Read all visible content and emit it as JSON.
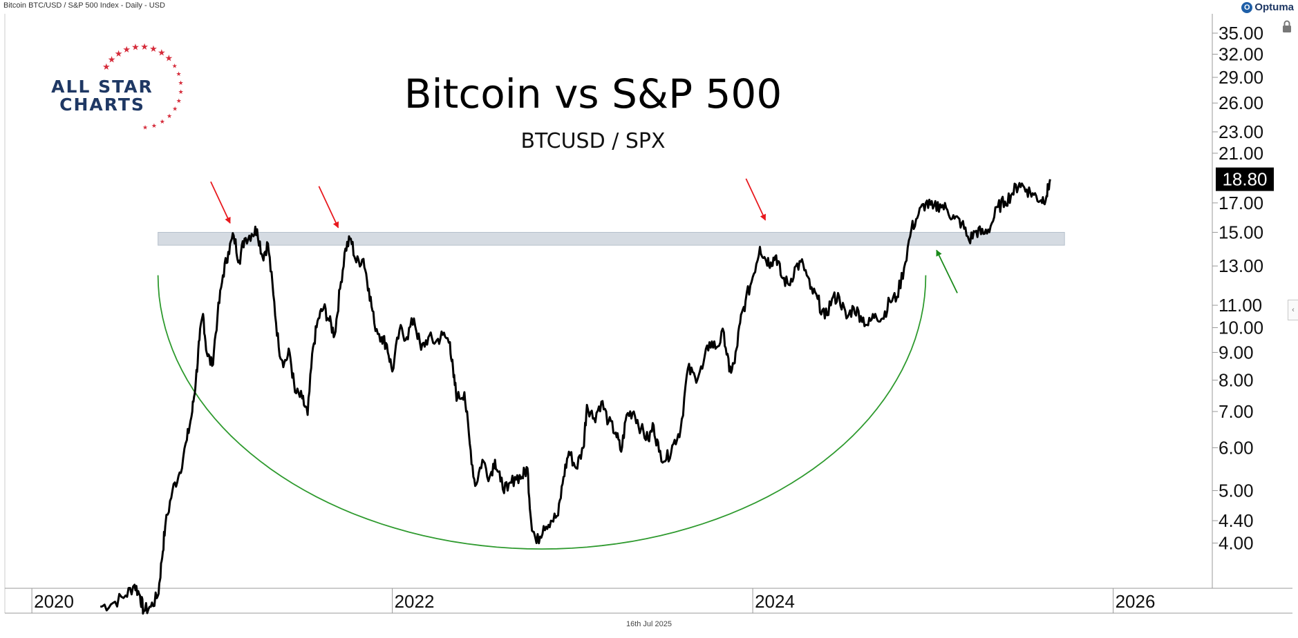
{
  "header": {
    "description": "Bitcoin BTC/USD / S&P 500 Index - Daily - USD",
    "brand": "Optuma"
  },
  "logo": {
    "line1": "ALL STAR",
    "line2": "CHARTS"
  },
  "footer": {
    "date": "16th Jul 2025"
  },
  "colors": {
    "price_line": "#000000",
    "resistance_band": "#d5dbe2",
    "red_arrow": "#e8191e",
    "green_arrow": "#1a8a1a",
    "cup_curve": "#2e9a2e",
    "logo_navy": "#1f3864",
    "logo_star": "#d52b3a"
  },
  "chart_data": {
    "type": "line",
    "title": "Bitcoin vs S&P 500",
    "subtitle": "BTCUSD / SPX",
    "y_scale": "log",
    "y_ticks": [
      "35.00",
      "32.00",
      "29.00",
      "26.00",
      "23.00",
      "21.00",
      "17.00",
      "15.00",
      "13.00",
      "11.00",
      "10.00",
      "9.00",
      "8.00",
      "7.00",
      "6.00",
      "5.00",
      "4.40",
      "4.00"
    ],
    "x_ticks": [
      "2020",
      "2022",
      "2024",
      "2026"
    ],
    "last_value": "18.80",
    "xlim": [
      2019.85,
      2026.55
    ],
    "ylim": [
      3.3,
      38
    ],
    "resistance_zone": {
      "y_low": 14.2,
      "y_high": 15.0,
      "x_start": 2020.7,
      "x_end": 2025.73
    },
    "cup": {
      "x_start": 2020.7,
      "x_end": 2024.96,
      "y_start": 12.5,
      "y_bottom": 3.9
    },
    "annotations": [
      {
        "type": "red_arrow",
        "x": 2021.1,
        "y": 15.6
      },
      {
        "type": "red_arrow",
        "x": 2021.7,
        "y": 15.3
      },
      {
        "type": "red_arrow",
        "x": 2024.07,
        "y": 15.8
      },
      {
        "type": "green_arrow",
        "x": 2025.02,
        "y": 13.9
      }
    ],
    "series": [
      {
        "points": [
          [
            2020.38,
            3.05
          ],
          [
            2020.45,
            3.1
          ],
          [
            2020.52,
            3.2
          ],
          [
            2020.57,
            3.35
          ],
          [
            2020.6,
            3.2
          ],
          [
            2020.62,
            3.0
          ],
          [
            2020.66,
            3.05
          ],
          [
            2020.7,
            3.2
          ],
          [
            2020.72,
            3.7
          ],
          [
            2020.74,
            4.3
          ],
          [
            2020.78,
            5.0
          ],
          [
            2020.82,
            5.4
          ],
          [
            2020.86,
            6.2
          ],
          [
            2020.89,
            7.0
          ],
          [
            2020.91,
            8.0
          ],
          [
            2020.93,
            9.5
          ],
          [
            2020.95,
            10.6
          ],
          [
            2020.97,
            9.0
          ],
          [
            2021.0,
            8.5
          ],
          [
            2021.03,
            10.5
          ],
          [
            2021.06,
            12.5
          ],
          [
            2021.09,
            13.8
          ],
          [
            2021.12,
            14.8
          ],
          [
            2021.15,
            13.3
          ],
          [
            2021.18,
            14.6
          ],
          [
            2021.22,
            14.9
          ],
          [
            2021.25,
            15.2
          ],
          [
            2021.28,
            13.5
          ],
          [
            2021.31,
            14.3
          ],
          [
            2021.34,
            11.5
          ],
          [
            2021.37,
            9.2
          ],
          [
            2021.4,
            8.6
          ],
          [
            2021.43,
            9.0
          ],
          [
            2021.46,
            7.6
          ],
          [
            2021.5,
            7.4
          ],
          [
            2021.53,
            6.9
          ],
          [
            2021.56,
            9.2
          ],
          [
            2021.59,
            10.4
          ],
          [
            2021.62,
            10.9
          ],
          [
            2021.65,
            10.3
          ],
          [
            2021.68,
            9.7
          ],
          [
            2021.71,
            11.8
          ],
          [
            2021.74,
            14.0
          ],
          [
            2021.77,
            14.6
          ],
          [
            2021.8,
            13.2
          ],
          [
            2021.84,
            13.4
          ],
          [
            2021.87,
            11.8
          ],
          [
            2021.9,
            10.2
          ],
          [
            2021.94,
            9.6
          ],
          [
            2021.97,
            9.3
          ],
          [
            2022.0,
            8.3
          ],
          [
            2022.04,
            9.9
          ],
          [
            2022.08,
            9.6
          ],
          [
            2022.12,
            10.4
          ],
          [
            2022.16,
            9.1
          ],
          [
            2022.2,
            9.6
          ],
          [
            2022.24,
            9.4
          ],
          [
            2022.28,
            9.7
          ],
          [
            2022.32,
            9.4
          ],
          [
            2022.34,
            8.1
          ],
          [
            2022.36,
            7.4
          ],
          [
            2022.4,
            7.6
          ],
          [
            2022.43,
            6.1
          ],
          [
            2022.46,
            5.1
          ],
          [
            2022.5,
            5.7
          ],
          [
            2022.54,
            5.3
          ],
          [
            2022.57,
            5.7
          ],
          [
            2022.6,
            5.2
          ],
          [
            2022.64,
            5.0
          ],
          [
            2022.68,
            5.3
          ],
          [
            2022.72,
            5.3
          ],
          [
            2022.75,
            5.5
          ],
          [
            2022.77,
            4.4
          ],
          [
            2022.8,
            4.0
          ],
          [
            2022.84,
            4.3
          ],
          [
            2022.88,
            4.4
          ],
          [
            2022.92,
            4.5
          ],
          [
            2022.95,
            5.3
          ],
          [
            2022.98,
            5.9
          ],
          [
            2023.02,
            5.5
          ],
          [
            2023.06,
            6.0
          ],
          [
            2023.08,
            7.2
          ],
          [
            2023.12,
            6.8
          ],
          [
            2023.16,
            7.3
          ],
          [
            2023.2,
            6.7
          ],
          [
            2023.24,
            6.4
          ],
          [
            2023.27,
            5.9
          ],
          [
            2023.3,
            6.9
          ],
          [
            2023.34,
            7.0
          ],
          [
            2023.38,
            6.5
          ],
          [
            2023.42,
            6.2
          ],
          [
            2023.45,
            6.6
          ],
          [
            2023.48,
            5.9
          ],
          [
            2023.52,
            5.7
          ],
          [
            2023.56,
            6.1
          ],
          [
            2023.6,
            6.5
          ],
          [
            2023.64,
            8.4
          ],
          [
            2023.68,
            8.1
          ],
          [
            2023.72,
            8.4
          ],
          [
            2023.76,
            9.4
          ],
          [
            2023.8,
            9.2
          ],
          [
            2023.84,
            9.8
          ],
          [
            2023.87,
            8.3
          ],
          [
            2023.9,
            8.6
          ],
          [
            2023.93,
            10.2
          ],
          [
            2023.96,
            11.2
          ],
          [
            2024.0,
            12.4
          ],
          [
            2024.04,
            14.1
          ],
          [
            2024.07,
            13.4
          ],
          [
            2024.1,
            13.2
          ],
          [
            2024.13,
            13.6
          ],
          [
            2024.16,
            12.4
          ],
          [
            2024.2,
            12.0
          ],
          [
            2024.24,
            13.0
          ],
          [
            2024.28,
            13.1
          ],
          [
            2024.32,
            11.8
          ],
          [
            2024.36,
            11.3
          ],
          [
            2024.4,
            10.4
          ],
          [
            2024.44,
            11.3
          ],
          [
            2024.48,
            11.4
          ],
          [
            2024.52,
            10.4
          ],
          [
            2024.56,
            10.9
          ],
          [
            2024.6,
            10.5
          ],
          [
            2024.64,
            10.1
          ],
          [
            2024.68,
            10.6
          ],
          [
            2024.72,
            10.4
          ],
          [
            2024.76,
            11.2
          ],
          [
            2024.8,
            11.4
          ],
          [
            2024.84,
            12.9
          ],
          [
            2024.88,
            15.2
          ],
          [
            2024.92,
            16.2
          ],
          [
            2024.96,
            17.0
          ],
          [
            2025.0,
            16.6
          ],
          [
            2025.04,
            16.9
          ],
          [
            2025.08,
            16.5
          ],
          [
            2025.12,
            15.9
          ],
          [
            2025.16,
            15.6
          ],
          [
            2025.2,
            14.5
          ],
          [
            2025.24,
            15.1
          ],
          [
            2025.28,
            14.9
          ],
          [
            2025.32,
            15.4
          ],
          [
            2025.36,
            16.7
          ],
          [
            2025.4,
            17.1
          ],
          [
            2025.44,
            17.7
          ],
          [
            2025.48,
            18.5
          ],
          [
            2025.52,
            18.0
          ],
          [
            2025.56,
            17.6
          ],
          [
            2025.6,
            17.2
          ],
          [
            2025.63,
            17.5
          ],
          [
            2025.65,
            18.8
          ]
        ]
      }
    ]
  }
}
